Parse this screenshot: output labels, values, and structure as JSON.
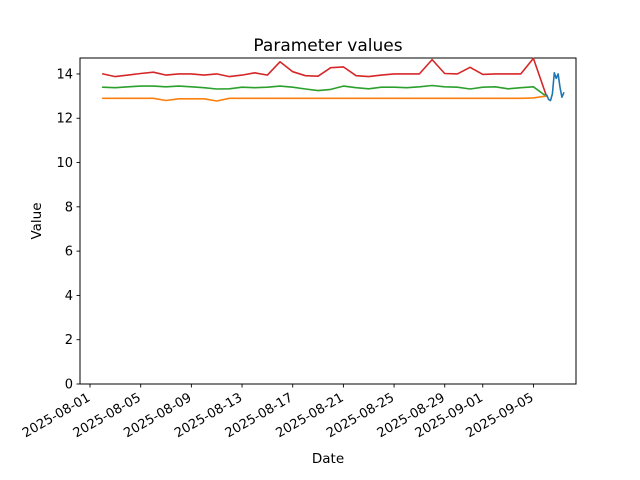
{
  "chart_data": {
    "type": "line",
    "title": "Parameter values",
    "xlabel": "Date",
    "ylabel": "Value",
    "grid": false,
    "legend": "none",
    "ylim": [
      0,
      14.72
    ],
    "xlim_days": [
      -0.79,
      38.36
    ],
    "x_day_reference": "2025-08-01",
    "y_ticks": [
      0,
      2,
      4,
      6,
      8,
      10,
      12,
      14
    ],
    "x_ticks": [
      {
        "day": 0,
        "label": "2025-08-01"
      },
      {
        "day": 4,
        "label": "2025-08-05"
      },
      {
        "day": 8,
        "label": "2025-08-09"
      },
      {
        "day": 12,
        "label": "2025-08-13"
      },
      {
        "day": 16,
        "label": "2025-08-17"
      },
      {
        "day": 20,
        "label": "2025-08-21"
      },
      {
        "day": 24,
        "label": "2025-08-25"
      },
      {
        "day": 28,
        "label": "2025-08-29"
      },
      {
        "day": 31,
        "label": "2025-09-01"
      },
      {
        "day": 35,
        "label": "2025-09-05"
      }
    ],
    "series": [
      {
        "name": "red",
        "color": "#d62728",
        "x_days": [
          1,
          2,
          3,
          4,
          5,
          6,
          7,
          8,
          9,
          10,
          11,
          12,
          13,
          14,
          15,
          16,
          17,
          18,
          19,
          20,
          21,
          22,
          23,
          24,
          25,
          26,
          27,
          28,
          29,
          30,
          31,
          32,
          33,
          34,
          35,
          36
        ],
        "values": [
          14.0,
          13.88,
          13.95,
          14.02,
          14.08,
          13.95,
          14.0,
          14.0,
          13.95,
          14.0,
          13.88,
          13.95,
          14.05,
          13.95,
          14.55,
          14.1,
          13.92,
          13.9,
          14.28,
          14.32,
          13.92,
          13.88,
          13.95,
          14.0,
          14.0,
          14.0,
          14.65,
          14.02,
          14.0,
          14.3,
          13.98,
          14.0,
          14.0,
          14.0,
          14.7,
          13.05
        ]
      },
      {
        "name": "green",
        "color": "#2ca02c",
        "x_days": [
          1,
          2,
          3,
          4,
          5,
          6,
          7,
          8,
          9,
          10,
          11,
          12,
          13,
          14,
          15,
          16,
          17,
          18,
          19,
          20,
          21,
          22,
          23,
          24,
          25,
          26,
          27,
          28,
          29,
          30,
          31,
          32,
          33,
          34,
          35,
          36
        ],
        "values": [
          13.4,
          13.38,
          13.42,
          13.45,
          13.45,
          13.42,
          13.45,
          13.42,
          13.38,
          13.32,
          13.33,
          13.4,
          13.38,
          13.4,
          13.45,
          13.4,
          13.32,
          13.25,
          13.3,
          13.45,
          13.38,
          13.33,
          13.4,
          13.4,
          13.38,
          13.42,
          13.48,
          13.42,
          13.4,
          13.32,
          13.4,
          13.42,
          13.33,
          13.38,
          13.42,
          13.0
        ]
      },
      {
        "name": "orange",
        "color": "#ff7f0e",
        "x_days": [
          1,
          2,
          3,
          4,
          5,
          6,
          7,
          8,
          9,
          10,
          11,
          12,
          13,
          14,
          15,
          16,
          17,
          18,
          19,
          20,
          21,
          22,
          23,
          24,
          25,
          26,
          27,
          28,
          29,
          30,
          31,
          32,
          33,
          34,
          35,
          36
        ],
        "values": [
          12.9,
          12.9,
          12.9,
          12.9,
          12.9,
          12.8,
          12.88,
          12.88,
          12.88,
          12.78,
          12.9,
          12.9,
          12.9,
          12.9,
          12.9,
          12.9,
          12.9,
          12.9,
          12.9,
          12.9,
          12.9,
          12.9,
          12.9,
          12.9,
          12.9,
          12.9,
          12.9,
          12.9,
          12.9,
          12.9,
          12.9,
          12.9,
          12.9,
          12.9,
          12.92,
          13.0
        ]
      },
      {
        "name": "blue",
        "color": "#1f77b4",
        "x_days": [
          36.05,
          36.2,
          36.35,
          36.5,
          36.65,
          36.8,
          36.95,
          37.1,
          37.25,
          37.4
        ],
        "values": [
          13.05,
          12.85,
          12.8,
          13.1,
          14.05,
          13.8,
          14.0,
          13.4,
          12.95,
          13.15
        ]
      }
    ]
  }
}
